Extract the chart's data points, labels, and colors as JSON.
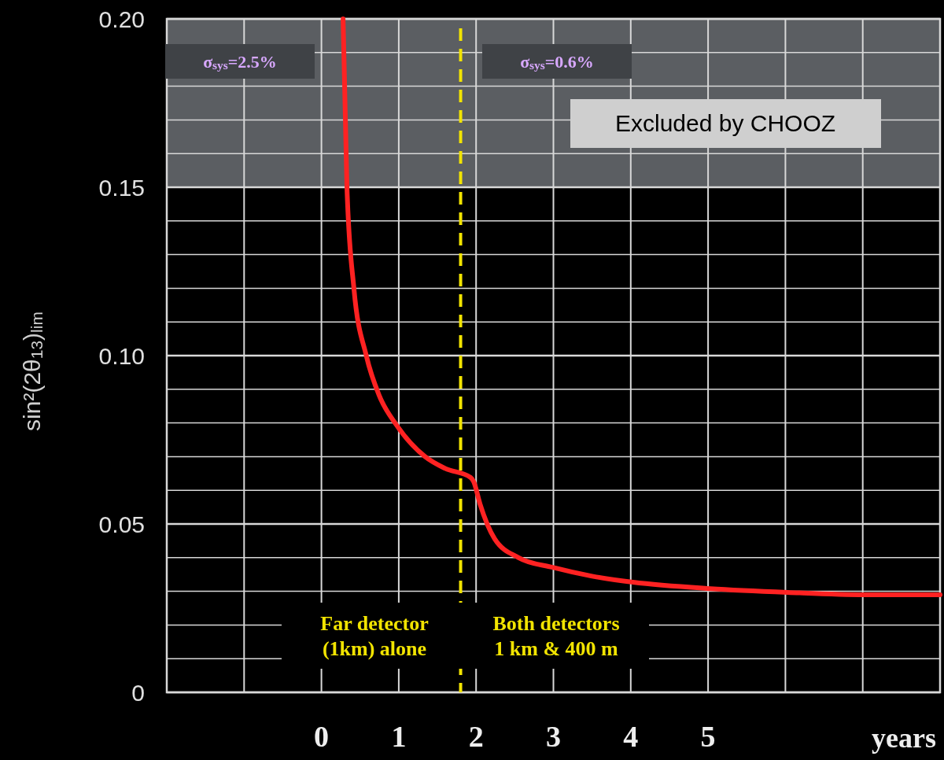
{
  "chart_data": {
    "type": "line",
    "xlabel": "years",
    "ylabel": "sin²(2θ$_{13}$)$_{lim}$",
    "x": [
      0.28,
      0.33,
      0.42,
      0.58,
      0.75,
      0.97,
      1.34,
      1.6,
      1.93,
      1.97,
      2.05,
      2.24,
      2.55,
      2.99,
      3.5,
      4.03,
      5.03,
      6.03,
      7.03,
      8.0
    ],
    "series": [
      {
        "color": "#ff2222",
        "values": [
          0.2,
          0.15,
          0.12,
          0.1,
          0.088,
          0.0794,
          0.07,
          0.0665,
          0.0638,
          0.0625,
          0.056,
          0.0456,
          0.04,
          0.0371,
          0.0345,
          0.0327,
          0.0308,
          0.0297,
          0.029,
          0.029
        ]
      }
    ],
    "xlim": [
      -2,
      8
    ],
    "xticks": [
      {
        "value": -1,
        "label": null
      },
      0,
      1,
      2,
      3,
      4,
      5,
      {
        "value": 6,
        "label": null
      },
      {
        "value": 7,
        "label": null
      }
    ],
    "ylim": [
      0,
      0.2
    ],
    "yticks": [
      0,
      {
        "value": 0.01,
        "label": null
      },
      {
        "value": 0.02,
        "label": null
      },
      {
        "value": 0.03,
        "label": null
      },
      {
        "value": 0.04,
        "label": null
      },
      0.05,
      {
        "value": 0.06,
        "label": null
      },
      {
        "value": 0.07,
        "label": null
      },
      {
        "value": 0.08,
        "label": null
      },
      {
        "value": 0.09,
        "label": null
      },
      {
        "value": 0.1,
        "label": "0.10"
      },
      {
        "value": 0.11,
        "label": null
      },
      {
        "value": 0.12,
        "label": null
      },
      {
        "value": 0.13,
        "label": null
      },
      {
        "value": 0.14,
        "label": null
      },
      0.15,
      {
        "value": 0.16,
        "label": null
      },
      {
        "value": 0.17,
        "label": null
      },
      {
        "value": 0.18,
        "label": null
      },
      {
        "value": 0.19,
        "label": null
      },
      {
        "value": 0.2,
        "label": "0.20"
      }
    ],
    "grid": true,
    "bands": [
      {
        "axis": "y",
        "from": 0.15,
        "to": 0.2,
        "label": "Excluded by CHOOZ",
        "color": "#5b5e62"
      }
    ],
    "ref_lines": [
      {
        "axis": "x",
        "value": 1.8,
        "color": "#f2e400",
        "line_style": "dashed"
      }
    ],
    "annotations": [
      "σ$_{sys}$=2.5%",
      "σ$_{sys}$=0.6%",
      "Far detector\n(1km) alone",
      "Both detectors\n1 km & 400 m"
    ]
  }
}
